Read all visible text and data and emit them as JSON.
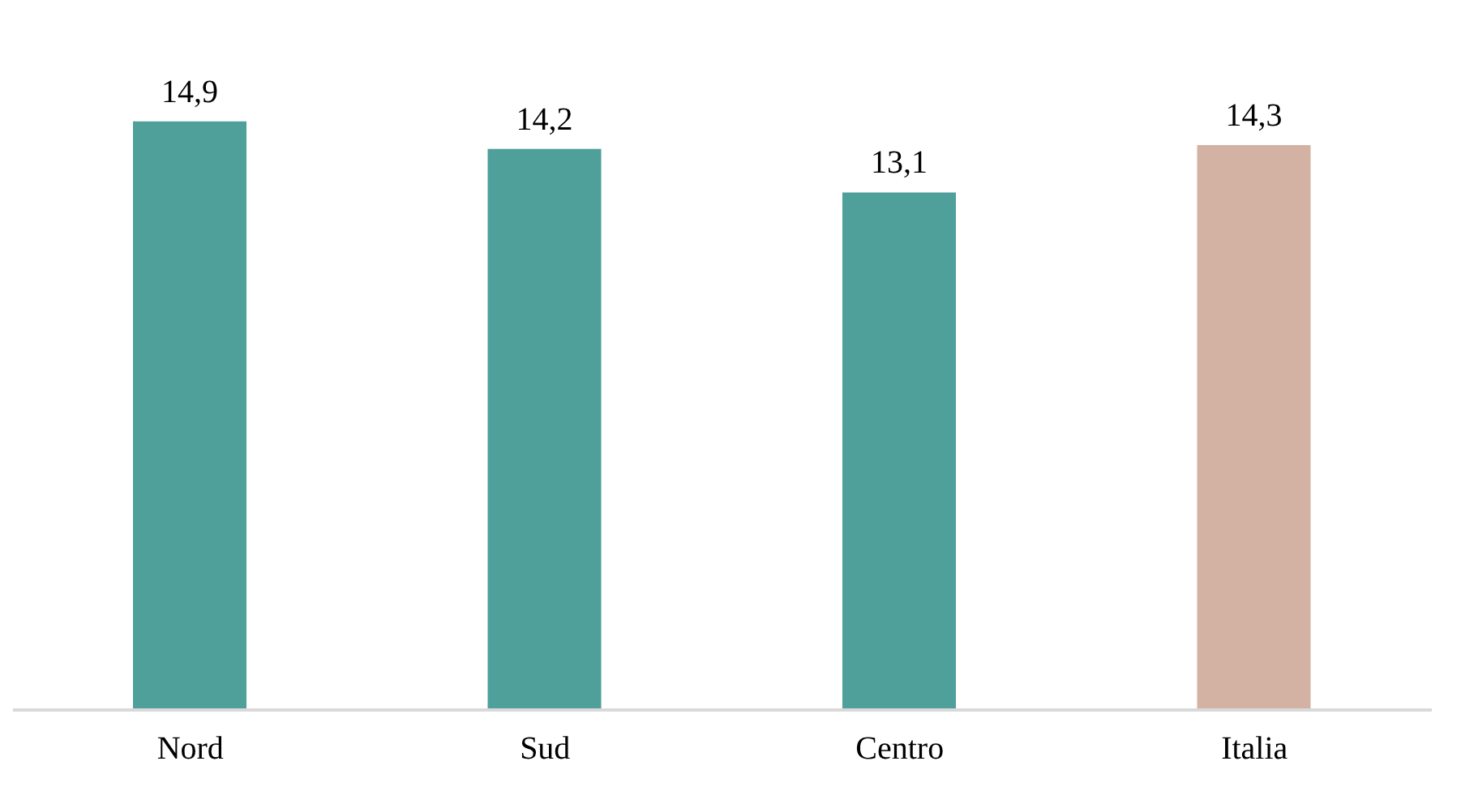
{
  "chart_data": {
    "type": "bar",
    "categories": [
      "Nord",
      "Sud",
      "Centro",
      "Italia"
    ],
    "values": [
      14.9,
      14.2,
      13.1,
      14.3
    ],
    "colors": [
      "#4f9f9b",
      "#4f9f9b",
      "#4f9f9b",
      "#d4b2a3"
    ],
    "value_labels": [
      "14,9",
      "14,2",
      "13,1",
      "14,3"
    ],
    "data_labels": false
  }
}
